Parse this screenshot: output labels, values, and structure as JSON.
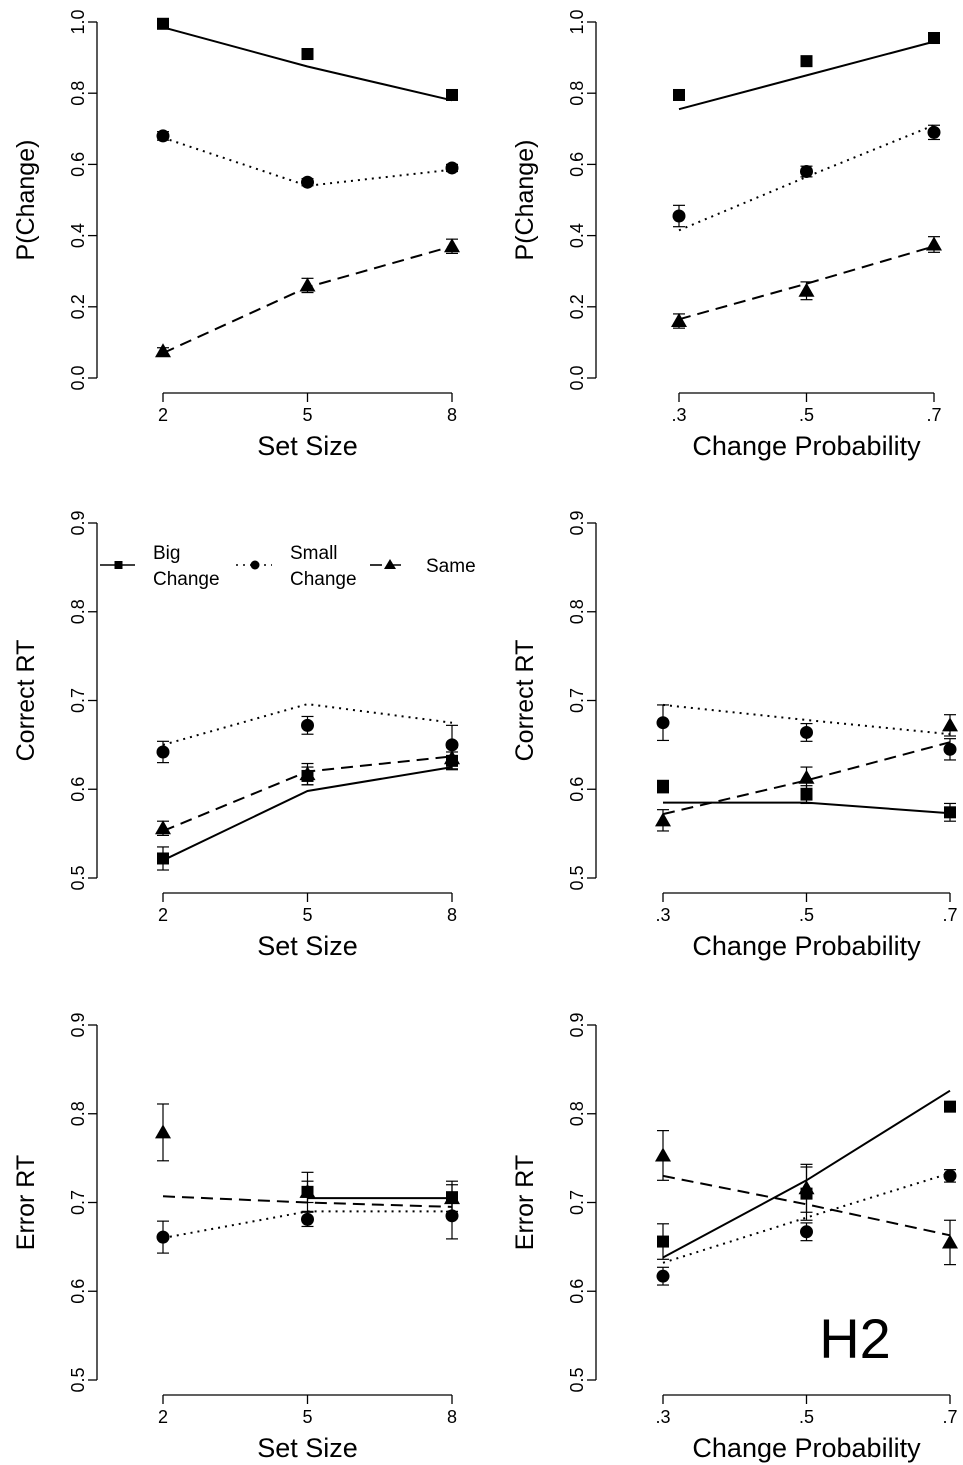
{
  "chart_data": [
    {
      "type": "line",
      "id": "p-setsize",
      "xlabel": "Set Size",
      "ylabel": "P(Change)",
      "x": [
        2,
        5,
        8
      ],
      "xticks": [
        "2",
        "5",
        "8"
      ],
      "xlim": [
        2,
        8
      ],
      "ylim": [
        0,
        1
      ],
      "yticks": [
        "0.0",
        "0.2",
        "0.4",
        "0.6",
        "0.8",
        "1.0"
      ],
      "series": [
        {
          "key": "big",
          "observed": [
            0.995,
            0.91,
            0.795
          ],
          "err": [
            0.01,
            0.015,
            0.012
          ],
          "predicted": [
            0.985,
            0.875,
            0.78
          ]
        },
        {
          "key": "small",
          "observed": [
            0.68,
            0.55,
            0.59
          ],
          "err": [
            0.012,
            0.01,
            0.01
          ],
          "predicted": [
            0.675,
            0.54,
            0.585
          ]
        },
        {
          "key": "same",
          "observed": [
            0.075,
            0.26,
            0.37
          ],
          "err": [
            0.01,
            0.02,
            0.02
          ],
          "predicted": [
            0.07,
            0.255,
            0.37
          ]
        }
      ]
    },
    {
      "type": "line",
      "id": "p-changeprob",
      "xlabel": "Change Probability",
      "ylabel": "P(Change)",
      "x": [
        0.3,
        0.5,
        0.7
      ],
      "xticks": [
        ".3",
        ".5",
        ".7"
      ],
      "xlim": [
        0.3,
        0.7
      ],
      "ylim": [
        0,
        1
      ],
      "yticks": [
        "0.0",
        "0.2",
        "0.4",
        "0.6",
        "0.8",
        "1.0"
      ],
      "series": [
        {
          "key": "big",
          "observed": [
            0.795,
            0.89,
            0.955
          ],
          "err": [
            0.012,
            0.012,
            0.015
          ],
          "predicted": [
            0.755,
            0.85,
            0.945
          ]
        },
        {
          "key": "small",
          "observed": [
            0.455,
            0.58,
            0.69
          ],
          "err": [
            0.03,
            0.015,
            0.02
          ],
          "predicted": [
            0.415,
            0.565,
            0.71
          ]
        },
        {
          "key": "same",
          "observed": [
            0.16,
            0.245,
            0.375
          ],
          "err": [
            0.02,
            0.025,
            0.022
          ],
          "predicted": [
            0.165,
            0.265,
            0.37
          ]
        }
      ]
    },
    {
      "type": "line",
      "id": "crt-setsize",
      "xlabel": "Set Size",
      "ylabel": "Correct RT",
      "x": [
        2,
        5,
        8
      ],
      "xticks": [
        "2",
        "5",
        "8"
      ],
      "xlim": [
        2,
        8
      ],
      "ylim": [
        0.5,
        0.9
      ],
      "yticks": [
        "0.5",
        "0.6",
        "0.7",
        "0.8",
        "0.9"
      ],
      "series": [
        {
          "key": "big",
          "observed": [
            0.522,
            0.615,
            0.632
          ],
          "err": [
            0.013,
            0.01,
            0.01
          ],
          "predicted": [
            0.52,
            0.598,
            0.625
          ]
        },
        {
          "key": "small",
          "observed": [
            0.642,
            0.672,
            0.65
          ],
          "err": [
            0.012,
            0.01,
            0.022
          ],
          "predicted": [
            0.65,
            0.696,
            0.675
          ]
        },
        {
          "key": "same",
          "observed": [
            0.556,
            0.617,
            0.635
          ],
          "err": [
            0.008,
            0.012,
            0.012
          ],
          "predicted": [
            0.553,
            0.62,
            0.637
          ]
        }
      ]
    },
    {
      "type": "line",
      "id": "crt-changeprob",
      "xlabel": "Change Probability",
      "ylabel": "Correct RT",
      "x": [
        0.3,
        0.5,
        0.7
      ],
      "xticks": [
        ".3",
        ".5",
        ".7"
      ],
      "xlim": [
        0.3,
        0.7
      ],
      "ylim": [
        0.5,
        0.9
      ],
      "yticks": [
        "0.5",
        "0.6",
        "0.7",
        "0.8",
        "0.9"
      ],
      "series": [
        {
          "key": "big",
          "observed": [
            0.603,
            0.594,
            0.574
          ],
          "err": [
            0.007,
            0.01,
            0.01
          ],
          "predicted": [
            0.585,
            0.585,
            0.573
          ]
        },
        {
          "key": "small",
          "observed": [
            0.675,
            0.664,
            0.645
          ],
          "err": [
            0.02,
            0.01,
            0.012
          ],
          "predicted": [
            0.695,
            0.678,
            0.662
          ]
        },
        {
          "key": "same",
          "observed": [
            0.565,
            0.613,
            0.672
          ],
          "err": [
            0.012,
            0.012,
            0.012
          ],
          "predicted": [
            0.572,
            0.61,
            0.653
          ]
        }
      ]
    },
    {
      "type": "line",
      "id": "ert-setsize",
      "xlabel": "Set Size",
      "ylabel": "Error RT",
      "x": [
        2,
        5,
        8
      ],
      "xticks": [
        "2",
        "5",
        "8"
      ],
      "xlim": [
        2,
        8
      ],
      "ylim": [
        0.5,
        0.9
      ],
      "yticks": [
        "0.5",
        "0.6",
        "0.7",
        "0.8",
        "0.9"
      ],
      "series": [
        {
          "key": "big",
          "observed": [
            null,
            0.712,
            0.706
          ],
          "err": [
            0,
            0.022,
            0.018
          ],
          "predicted": [
            null,
            0.705,
            0.705
          ]
        },
        {
          "key": "small",
          "observed": [
            0.661,
            0.681,
            0.685
          ],
          "err": [
            0.018,
            0.008,
            0.026
          ],
          "predicted": [
            0.66,
            0.69,
            0.69
          ]
        },
        {
          "key": "same",
          "observed": [
            0.779,
            0.712,
            0.705
          ],
          "err": [
            0.032,
            0.012,
            0.015
          ],
          "predicted": [
            0.707,
            0.7,
            0.695
          ]
        }
      ]
    },
    {
      "type": "line",
      "id": "ert-changeprob",
      "xlabel": "Change Probability",
      "ylabel": "Error RT",
      "x": [
        0.3,
        0.5,
        0.7
      ],
      "xticks": [
        ".3",
        ".5",
        ".7"
      ],
      "xlim": [
        0.3,
        0.7
      ],
      "ylim": [
        0.5,
        0.9
      ],
      "yticks": [
        "0.5",
        "0.6",
        "0.7",
        "0.8",
        "0.9"
      ],
      "annotation": "H2",
      "series": [
        {
          "key": "big",
          "observed": [
            0.656,
            0.71,
            0.808
          ],
          "err": [
            0.02,
            0.03,
            0.005
          ],
          "predicted": [
            0.638,
            0.725,
            0.826
          ]
        },
        {
          "key": "small",
          "observed": [
            0.617,
            0.667,
            0.73
          ],
          "err": [
            0.01,
            0.01,
            0.007
          ],
          "predicted": [
            0.632,
            0.683,
            0.733
          ]
        },
        {
          "key": "same",
          "observed": [
            0.753,
            0.716,
            0.655
          ],
          "err": [
            0.028,
            0.027,
            0.025
          ],
          "predicted": [
            0.73,
            0.698,
            0.663
          ]
        }
      ]
    }
  ],
  "legend": {
    "placement": "top-left of Correct RT by Set Size panel",
    "items": [
      {
        "key": "big",
        "label_line1": "Big",
        "label_line2": "Change"
      },
      {
        "key": "small",
        "label_line1": "Small",
        "label_line2": "Change"
      },
      {
        "key": "same",
        "label_line1": "Same",
        "label_line2": ""
      }
    ]
  },
  "style": {
    "series": {
      "big": {
        "marker": "square",
        "line": "solid",
        "color": "#000000"
      },
      "small": {
        "marker": "circle",
        "line": "dotted",
        "color": "#000000"
      },
      "same": {
        "marker": "triangle",
        "line": "dashed",
        "color": "#000000"
      }
    }
  }
}
